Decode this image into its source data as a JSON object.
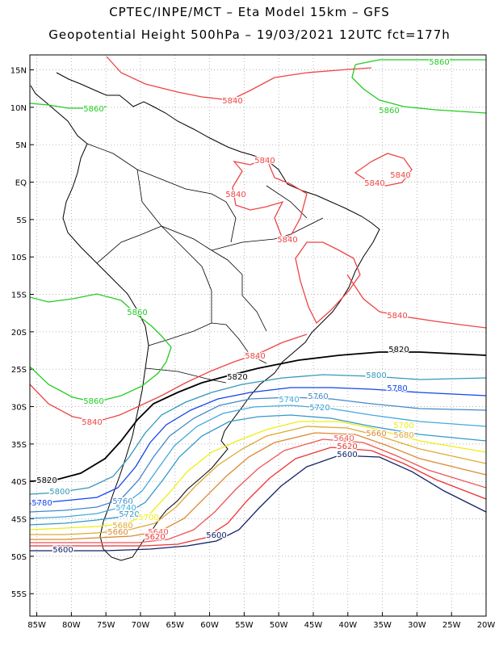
{
  "header": {
    "line1": "CPTEC/INPE/MCT –  Eta Model 15km – GFS",
    "line2": "Geopotential Height 500hPa – 19/03/2021 12UTC fct=177h"
  },
  "axes": {
    "lat_labels": [
      "15N",
      "10N",
      "5N",
      "EQ",
      "5S",
      "10S",
      "15S",
      "20S",
      "25S",
      "30S",
      "35S",
      "40S",
      "45S",
      "50S",
      "55S"
    ],
    "lat_values": [
      15,
      10,
      5,
      0,
      -5,
      -10,
      -15,
      -20,
      -25,
      -30,
      -35,
      -40,
      -45,
      -50,
      -55
    ],
    "lon_labels": [
      "85W",
      "80W",
      "75W",
      "70W",
      "65W",
      "60W",
      "55W",
      "50W",
      "45W",
      "40W",
      "35W",
      "30W",
      "25W",
      "20W"
    ],
    "lon_values": [
      -85,
      -80,
      -75,
      -70,
      -65,
      -60,
      -55,
      -50,
      -45,
      -40,
      -35,
      -30,
      -25,
      -20
    ],
    "lon_range": [
      -86,
      -20
    ],
    "lat_range": [
      -58,
      17
    ],
    "grid": "dotted"
  },
  "contours": [
    {
      "value": "5860",
      "color": "#22cc22"
    },
    {
      "value": "5840",
      "color": "#ee4444"
    },
    {
      "value": "5820",
      "color": "#000000"
    },
    {
      "value": "5800",
      "color": "#3399bb"
    },
    {
      "value": "5780",
      "color": "#1144ee"
    },
    {
      "value": "5760",
      "color": "#4488cc"
    },
    {
      "value": "5740",
      "color": "#44aadd"
    },
    {
      "value": "5720",
      "color": "#3399cc"
    },
    {
      "value": "5700",
      "color": "#eeee11"
    },
    {
      "value": "5680",
      "color": "#ddaa33"
    },
    {
      "value": "5660",
      "color": "#dd8833"
    },
    {
      "value": "5640",
      "color": "#ee5555"
    },
    {
      "value": "5620",
      "color": "#ee3333"
    },
    {
      "value": "5600",
      "color": "#112266"
    }
  ],
  "labels": {
    "c5860": "5860",
    "c5840": "5840",
    "c5820": "5820",
    "c5800": "5800",
    "c5780": "5780",
    "c5760": "5760",
    "c5740": "5740",
    "c5720": "5720",
    "c5700": "5700",
    "c5680": "5680",
    "c5660": "5660",
    "c5640": "5640",
    "c5620": "5620",
    "c5600": "5600"
  }
}
